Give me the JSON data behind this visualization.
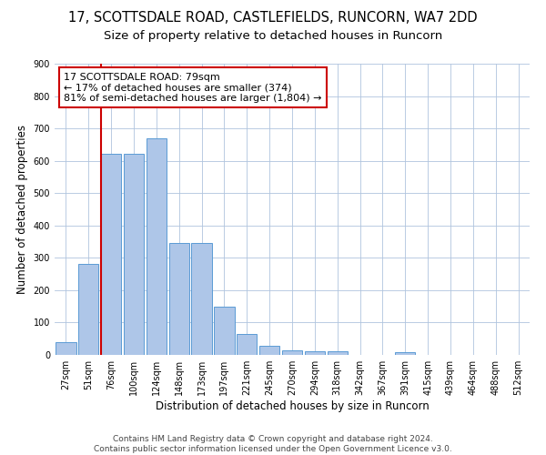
{
  "title": "17, SCOTTSDALE ROAD, CASTLEFIELDS, RUNCORN, WA7 2DD",
  "subtitle": "Size of property relative to detached houses in Runcorn",
  "xlabel": "Distribution of detached houses by size in Runcorn",
  "ylabel": "Number of detached properties",
  "categories": [
    "27sqm",
    "51sqm",
    "76sqm",
    "100sqm",
    "124sqm",
    "148sqm",
    "173sqm",
    "197sqm",
    "221sqm",
    "245sqm",
    "270sqm",
    "294sqm",
    "318sqm",
    "342sqm",
    "367sqm",
    "391sqm",
    "415sqm",
    "439sqm",
    "464sqm",
    "488sqm",
    "512sqm"
  ],
  "values": [
    40,
    280,
    622,
    622,
    668,
    345,
    345,
    148,
    65,
    27,
    13,
    11,
    11,
    0,
    0,
    9,
    0,
    0,
    0,
    0,
    0
  ],
  "bar_color": "#aec6e8",
  "bar_edge_color": "#5b9bd5",
  "vline_color": "#cc0000",
  "annotation_text": "17 SCOTTSDALE ROAD: 79sqm\n← 17% of detached houses are smaller (374)\n81% of semi-detached houses are larger (1,804) →",
  "annotation_box_color": "#ffffff",
  "annotation_box_edge": "#cc0000",
  "ylim": [
    0,
    900
  ],
  "yticks": [
    0,
    100,
    200,
    300,
    400,
    500,
    600,
    700,
    800,
    900
  ],
  "footer": "Contains HM Land Registry data © Crown copyright and database right 2024.\nContains public sector information licensed under the Open Government Licence v3.0.",
  "background_color": "#ffffff",
  "grid_color": "#b0c4de",
  "title_fontsize": 10.5,
  "subtitle_fontsize": 9.5,
  "axis_label_fontsize": 8.5,
  "tick_fontsize": 7,
  "annotation_fontsize": 8,
  "footer_fontsize": 6.5
}
